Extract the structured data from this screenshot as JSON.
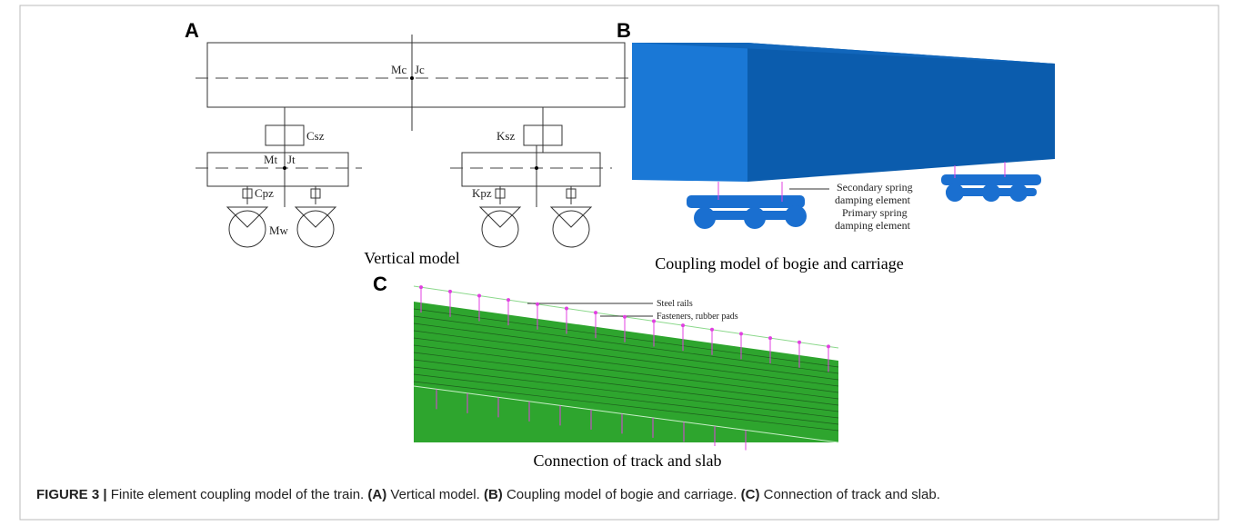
{
  "figure": {
    "panels": [
      {
        "label": "A",
        "title": "Vertical model",
        "annotations": [
          "Mc",
          "Jc",
          "Csz",
          "Ksz",
          "Mt",
          "Jt",
          "Cpz",
          "Kpz",
          "Mw"
        ]
      },
      {
        "label": "B",
        "title": "Coupling model of bogie and carriage",
        "annotations": [
          "Secondary spring",
          "damping element",
          "Primary spring",
          "damping element"
        ]
      },
      {
        "label": "C",
        "title": "Connection of track and slab",
        "annotations": [
          "Steel rails",
          "Fasteners, rubber pads"
        ]
      }
    ],
    "caption": {
      "label": "FIGURE 3 |",
      "text": "Finite element coupling model of the train.",
      "parts": [
        {
          "label": "(A)",
          "text": "Vertical model."
        },
        {
          "label": "(B)",
          "text": "Coupling model of bogie and carriage."
        },
        {
          "label": "(C)",
          "text": "Connection of track and slab."
        }
      ]
    }
  }
}
